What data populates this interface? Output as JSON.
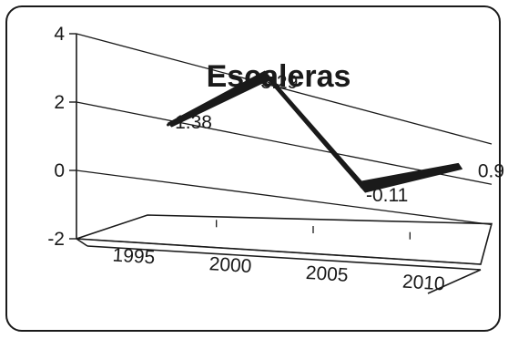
{
  "chart_data": {
    "type": "line",
    "title": "Escaleras",
    "xlabel": "",
    "ylabel": "",
    "categories": [
      "1995",
      "2000",
      "2005",
      "2010"
    ],
    "x": [
      1995,
      2000,
      2005,
      2010
    ],
    "series": [
      {
        "values": [
          1.38,
          3.29,
          -0.11,
          0.9
        ],
        "data_labels": [
          "1.38",
          "3.29",
          "-0.11",
          "0.9"
        ],
        "color": "#1a1a1a"
      }
    ],
    "x_tick_labels": [
      "1995",
      "2000",
      "2005",
      "2010"
    ],
    "y_tick_labels": [
      "4",
      "2",
      "0",
      "-2"
    ],
    "y_ticks": [
      4,
      2,
      0,
      -2
    ],
    "ylim": [
      -2,
      4
    ],
    "xlim": [
      1993,
      2012
    ],
    "grid": true,
    "legend": "none",
    "style": "3d-line"
  }
}
